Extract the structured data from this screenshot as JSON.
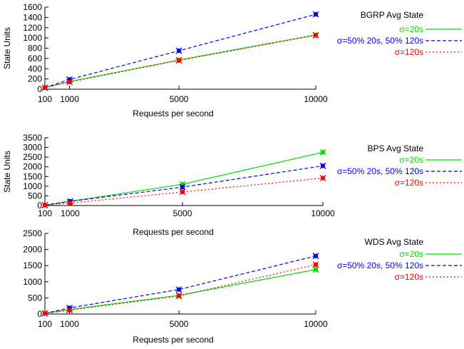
{
  "colors": {
    "green": "#00dd00",
    "blue": "#0000ff",
    "red": "#ff0000",
    "axis": "#000000"
  },
  "chart_data": [
    {
      "type": "line",
      "legend_title": "BGRP Avg State",
      "xlabel": "Requests per second",
      "ylabel": "State Units",
      "xlim": [
        100,
        10000
      ],
      "ylim": [
        0,
        1600
      ],
      "x_ticks": [
        100,
        1000,
        5000,
        10000
      ],
      "y_ticks": [
        0,
        200,
        400,
        600,
        800,
        1000,
        1200,
        1400,
        1600
      ],
      "x": [
        100,
        1000,
        5000,
        10000
      ],
      "series": [
        {
          "name": "σ=20s",
          "color": "green",
          "dash": "",
          "values": [
            30,
            150,
            570,
            1060
          ]
        },
        {
          "name": "σ=50% 20s, 50% 120s",
          "color": "blue",
          "dash": "5,3",
          "values": [
            30,
            190,
            750,
            1460
          ]
        },
        {
          "name": "σ=120s",
          "color": "red",
          "dash": "2,3",
          "values": [
            30,
            140,
            560,
            1050
          ]
        }
      ]
    },
    {
      "type": "line",
      "legend_title": "BPS Avg State",
      "xlabel": "Requests per second",
      "ylabel": "State Units",
      "xlim": [
        100,
        10000
      ],
      "ylim": [
        0,
        3500
      ],
      "x_ticks": [
        100,
        1000,
        5000,
        10000
      ],
      "y_ticks": [
        0,
        500,
        1000,
        1500,
        2000,
        2500,
        3000,
        3500
      ],
      "x": [
        100,
        1000,
        5000,
        10000
      ],
      "series": [
        {
          "name": "σ=20s",
          "color": "green",
          "dash": "",
          "values": [
            20,
            220,
            1100,
            2750
          ]
        },
        {
          "name": "σ=50% 20s, 50% 120s",
          "color": "blue",
          "dash": "5,3",
          "values": [
            20,
            220,
            950,
            2050
          ]
        },
        {
          "name": "σ=120s",
          "color": "red",
          "dash": "2,3",
          "values": [
            20,
            130,
            700,
            1420
          ]
        }
      ]
    },
    {
      "type": "line",
      "legend_title": "WDS Avg State",
      "xlabel": "Requests per second",
      "ylabel": "",
      "xlim": [
        100,
        10000
      ],
      "ylim": [
        0,
        2500
      ],
      "x_ticks": [
        100,
        1000,
        5000,
        10000
      ],
      "y_ticks": [
        0,
        500,
        1000,
        1500,
        2000,
        2500
      ],
      "x": [
        100,
        1000,
        5000,
        10000
      ],
      "series": [
        {
          "name": "σ=20s",
          "color": "green",
          "dash": "",
          "values": [
            20,
            140,
            580,
            1380
          ]
        },
        {
          "name": "σ=50% 20s, 50% 120s",
          "color": "blue",
          "dash": "5,3",
          "values": [
            20,
            190,
            760,
            1800
          ]
        },
        {
          "name": "σ=120s",
          "color": "red",
          "dash": "2,3",
          "values": [
            20,
            120,
            560,
            1530
          ]
        }
      ]
    }
  ]
}
